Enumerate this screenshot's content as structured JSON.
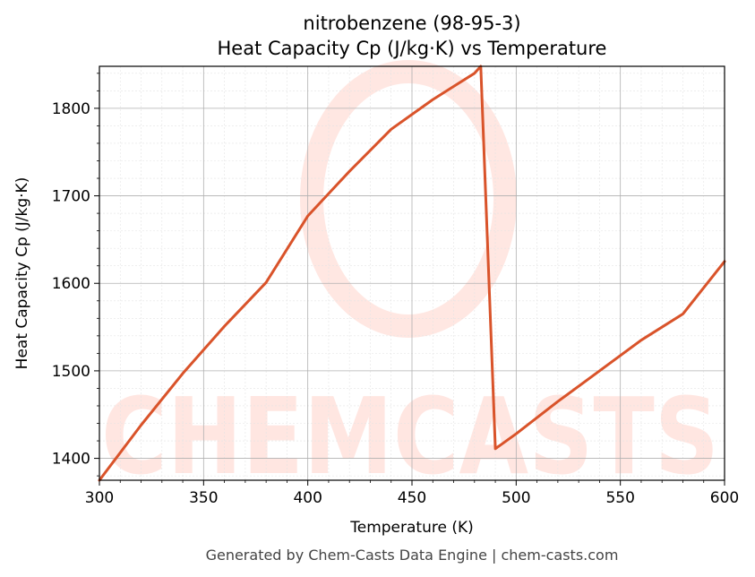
{
  "chart_data": {
    "type": "line",
    "title": "nitrobenzene (98-95-3)",
    "subtitle": "Heat Capacity Cp (J/kg·K) vs Temperature",
    "xlabel": "Temperature (K)",
    "ylabel": "Heat Capacity Cp (J/kg·K)",
    "xlim": [
      300,
      600
    ],
    "ylim": [
      1375,
      1848
    ],
    "xticks": [
      300,
      350,
      400,
      450,
      500,
      550,
      600
    ],
    "yticks": [
      1400,
      1500,
      1600,
      1700,
      1800
    ],
    "grid": true,
    "line_color": "#d9532a",
    "series": [
      {
        "x": [
          300,
          320,
          340,
          360,
          380,
          400,
          420,
          440,
          460,
          480,
          483,
          490,
          500,
          520,
          540,
          560,
          580,
          600
        ],
        "y": [
          1375,
          1438,
          1497,
          1551,
          1601,
          1677,
          1728,
          1776,
          1810,
          1840,
          1848,
          1411,
          1428,
          1465,
          1500,
          1535,
          1565,
          1625
        ]
      }
    ]
  },
  "footer": "Generated by Chem-Casts Data Engine | chem-casts.com",
  "watermark": "CHEMCASTS"
}
